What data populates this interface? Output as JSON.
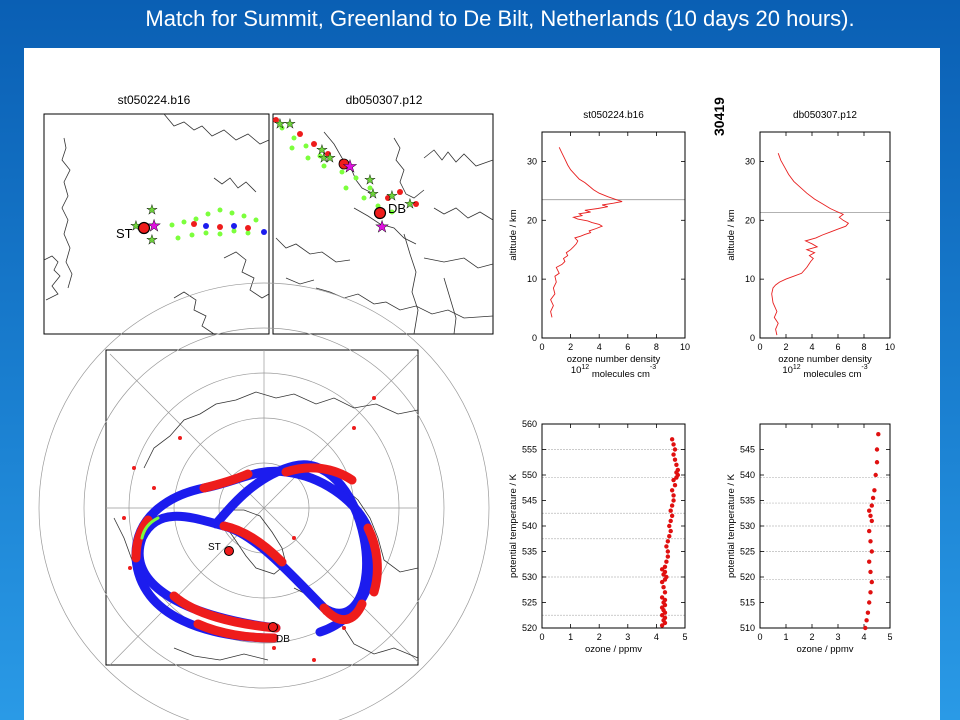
{
  "slide_title": "Match for Summit, Greenland to De Bilt, Netherlands (10 days 20 hours).",
  "colors": {
    "background": "#1a7fd0",
    "red": "#ee1c1c",
    "blue": "#1c1cee",
    "green": "#7cff3c",
    "magenta": "#e010e0"
  },
  "maps": {
    "left_title": "st050224.b16",
    "right_title": "db050307.p12",
    "label_st": "ST",
    "label_db": "DB"
  },
  "polar_map": {
    "label_st": "ST",
    "label_db": "DB"
  },
  "match_id": "30419",
  "chart_data": [
    {
      "type": "line",
      "title": "st050224.b16",
      "xlabel": "ozone number density",
      "xlabel2_base": "10",
      "xlabel2_exp": "12",
      "xlabel2_rest": "molecules cm",
      "xlabel2_exp2": "-3",
      "ylabel": "altitude / km",
      "xlim": [
        0,
        10
      ],
      "ylim": [
        0,
        35
      ],
      "xticks": [
        0,
        2,
        4,
        6,
        8,
        10
      ],
      "yticks": [
        0,
        10,
        20,
        30
      ],
      "hline": 23.5,
      "series": [
        {
          "x": [
            0.7,
            0.6,
            0.8,
            0.6,
            0.9,
            0.8,
            1.0,
            0.9,
            1.2,
            1.1,
            1.0,
            1.4,
            1.6,
            1.5,
            1.8,
            1.7,
            2.0,
            2.2,
            2.4,
            2.5,
            2.3,
            2.7,
            3.0,
            3.4,
            3.3,
            3.8,
            4.2,
            4.0,
            3.5,
            3.2,
            2.5,
            2.2,
            2.8,
            2.6,
            3.4,
            3.0,
            3.9,
            4.6,
            4.2,
            5.0,
            5.6,
            5.2,
            4.6,
            4.0,
            3.6,
            3.3,
            3.0,
            2.6,
            2.3,
            2.0,
            1.8,
            1.6,
            1.4,
            1.2
          ],
          "y": [
            3.5,
            4.5,
            5.5,
            6.5,
            7.5,
            8.5,
            9.5,
            10.5,
            11.0,
            11.5,
            12.0,
            12.5,
            13.0,
            13.5,
            14.0,
            14.5,
            15.0,
            15.5,
            16.0,
            16.5,
            17.0,
            17.3,
            17.6,
            17.9,
            18.2,
            18.6,
            19.0,
            19.3,
            19.6,
            19.9,
            20.2,
            20.5,
            20.8,
            21.1,
            21.4,
            21.7,
            22.0,
            22.3,
            22.6,
            22.9,
            23.2,
            23.5,
            24.0,
            24.6,
            25.2,
            25.8,
            26.4,
            27.0,
            27.8,
            28.6,
            29.4,
            30.4,
            31.4,
            32.4
          ]
        }
      ]
    },
    {
      "type": "line",
      "title": "db050307.p12",
      "xlabel": "ozone number density",
      "xlabel2_base": "10",
      "xlabel2_exp": "12",
      "xlabel2_rest": "molecules cm",
      "xlabel2_exp2": "-3",
      "ylabel": "altitude / km",
      "xlim": [
        0,
        10
      ],
      "ylim": [
        0,
        35
      ],
      "xticks": [
        0,
        2,
        4,
        6,
        8,
        10
      ],
      "yticks": [
        0,
        10,
        20,
        30
      ],
      "hline": 21.3,
      "series": [
        {
          "x": [
            1.3,
            1.2,
            1.4,
            1.1,
            1.3,
            1.0,
            0.9,
            1.0,
            1.2,
            1.5,
            2.0,
            2.6,
            3.2,
            3.6,
            3.9,
            4.1,
            3.8,
            4.2,
            3.6,
            4.4,
            4.0,
            3.5,
            4.3,
            4.8,
            5.4,
            6.0,
            6.6,
            6.8,
            6.4,
            6.1,
            6.4,
            5.9,
            5.4,
            4.8,
            4.2,
            3.6,
            3.1,
            2.6,
            2.2,
            1.9,
            1.6,
            1.4
          ],
          "y": [
            0.5,
            1.5,
            2.5,
            3.5,
            4.5,
            6.0,
            7.5,
            8.5,
            9.0,
            9.5,
            10.0,
            10.5,
            11.0,
            12.0,
            13.0,
            13.5,
            14.0,
            14.5,
            15.0,
            15.5,
            16.0,
            16.5,
            17.0,
            17.5,
            18.0,
            18.5,
            19.0,
            19.5,
            20.0,
            20.5,
            21.0,
            21.5,
            22.0,
            22.8,
            23.6,
            24.6,
            25.6,
            26.6,
            27.8,
            29.0,
            30.2,
            31.4
          ]
        }
      ]
    },
    {
      "type": "scatter",
      "xlabel": "ozone / ppmv",
      "ylabel": "potential temperature / K",
      "xlim": [
        0,
        5
      ],
      "ylim": [
        520,
        560
      ],
      "xticks": [
        0,
        1,
        2,
        3,
        4,
        5
      ],
      "yticks": [
        520,
        525,
        530,
        535,
        540,
        545,
        550,
        555,
        560
      ],
      "gridlines": [
        522.5,
        530,
        537.5,
        542.5,
        549.5,
        555
      ],
      "series": [
        {
          "x": [
            4.2,
            4.3,
            4.25,
            4.3,
            4.2,
            4.3,
            4.25,
            4.2,
            4.3,
            4.25,
            4.3,
            4.2,
            4.3,
            4.25,
            4.2,
            4.3,
            4.35,
            4.25,
            4.3,
            4.2,
            4.3,
            4.35,
            4.4,
            4.4,
            4.35,
            4.4,
            4.45,
            4.5,
            4.45,
            4.5,
            4.55,
            4.5,
            4.55,
            4.6,
            4.6,
            4.55,
            4.65,
            4.6,
            4.7,
            4.75,
            4.7,
            4.75,
            4.7,
            4.65,
            4.6,
            4.65,
            4.6,
            4.55
          ],
          "y": [
            520.5,
            521,
            521.5,
            522,
            522.5,
            523,
            523.5,
            524,
            524.5,
            525,
            525.5,
            526,
            527,
            528,
            529,
            529.5,
            530,
            530.5,
            531,
            531.5,
            532,
            533,
            534,
            535,
            536,
            537,
            538,
            539,
            540,
            541,
            542,
            543,
            544,
            545,
            546,
            547,
            548,
            549,
            549.5,
            550,
            550.5,
            551,
            552,
            553,
            554,
            555,
            556,
            557
          ]
        }
      ]
    },
    {
      "type": "scatter",
      "xlabel": "ozone / ppmv",
      "ylabel": "potential temperature / K",
      "xlim": [
        0,
        5
      ],
      "ylim": [
        510,
        550
      ],
      "xticks": [
        0,
        1,
        2,
        3,
        4,
        5
      ],
      "yticks": [
        510,
        515,
        520,
        525,
        530,
        535,
        540,
        545
      ],
      "gridlines": [
        519.5,
        525,
        530,
        534.5,
        539.5
      ],
      "series": [
        {
          "x": [
            4.05,
            4.1,
            4.15,
            4.2,
            4.25,
            4.3,
            4.25,
            4.2,
            4.3,
            4.25,
            4.2,
            4.3,
            4.25,
            4.2,
            4.3,
            4.35,
            4.4,
            4.45,
            4.5,
            4.5,
            4.55
          ],
          "y": [
            510,
            511.5,
            513,
            515,
            517,
            519,
            521,
            523,
            525,
            527,
            529,
            531,
            532,
            533,
            534,
            535.5,
            537,
            540,
            542.5,
            545,
            548
          ]
        }
      ]
    }
  ]
}
